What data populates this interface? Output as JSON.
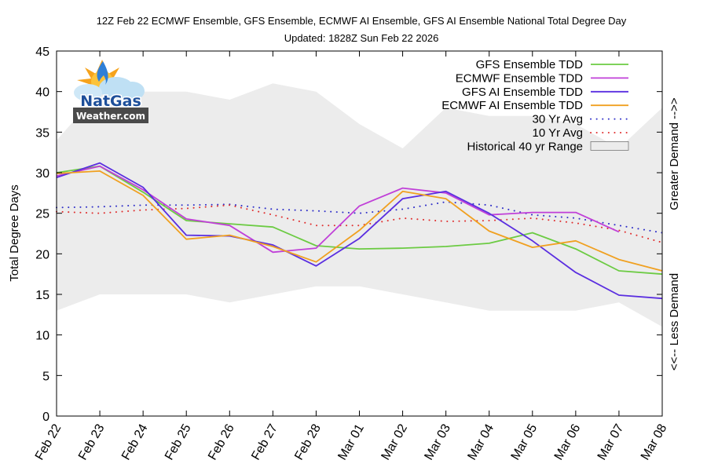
{
  "chart_data": {
    "type": "line",
    "title": "12Z Feb 22 ECMWF Ensemble, GFS Ensemble, ECMWF AI Ensemble, GFS AI Ensemble National Total Degree Day",
    "subtitle": "Updated: 1828Z Sun Feb 22 2026",
    "xlabel": "",
    "ylabel": "Total Degree Days",
    "y2label_top": "Greater Demand -->>",
    "y2label_bottom": "<<-- Less Demand",
    "ylim": [
      0,
      45
    ],
    "yticks": [
      0,
      5,
      10,
      15,
      20,
      25,
      30,
      35,
      40,
      45
    ],
    "ytick_labels": [
      "0",
      "5",
      "10",
      "15",
      "20",
      "25",
      "30",
      "35",
      "40",
      "45"
    ],
    "categories": [
      "Feb 22",
      "Feb 23",
      "Feb 24",
      "Feb 25",
      "Feb 26",
      "Feb 27",
      "Feb 28",
      "Mar 01",
      "Mar 02",
      "Mar 03",
      "Mar 04",
      "Mar 05",
      "Mar 06",
      "Mar 07",
      "Mar 08"
    ],
    "grid": false,
    "legend_position": "top-right",
    "range": {
      "name": "Historical 40 yr Range",
      "color": "#ececec",
      "upper": [
        34,
        40,
        40,
        40,
        39,
        41,
        40,
        36,
        33,
        38,
        37,
        37,
        36,
        33,
        38
      ],
      "lower": [
        13,
        15,
        15,
        15,
        14,
        15,
        16,
        16,
        15,
        14,
        13,
        13,
        13,
        14,
        11
      ]
    },
    "series": [
      {
        "name": "GFS Ensemble TDD",
        "color": "#6ccb43",
        "style": "solid",
        "values": [
          30.0,
          30.8,
          27.6,
          24.1,
          23.7,
          23.3,
          21.0,
          20.6,
          20.7,
          20.9,
          21.3,
          22.6,
          20.6,
          17.9,
          17.5
        ]
      },
      {
        "name": "ECMWF Ensemble TDD",
        "color": "#c040d8",
        "style": "solid",
        "values": [
          29.6,
          30.8,
          27.9,
          24.3,
          23.5,
          20.2,
          20.7,
          25.9,
          28.1,
          27.5,
          24.8,
          25.1,
          25.1,
          22.7,
          null
        ]
      },
      {
        "name": "GFS AI Ensemble TDD",
        "color": "#5a2ee0",
        "style": "solid",
        "values": [
          29.4,
          31.2,
          28.2,
          22.3,
          22.2,
          21.1,
          18.5,
          21.9,
          26.8,
          27.7,
          25.0,
          21.6,
          17.7,
          14.9,
          14.5
        ]
      },
      {
        "name": "ECMWF AI Ensemble TDD",
        "color": "#f0a020",
        "style": "solid",
        "values": [
          29.9,
          30.2,
          27.2,
          21.8,
          22.3,
          20.9,
          19.0,
          22.9,
          27.7,
          26.8,
          22.8,
          20.8,
          21.6,
          19.3,
          17.9
        ]
      },
      {
        "name": "30 Yr Avg",
        "color": "#3030c8",
        "style": "dotted",
        "values": [
          25.7,
          25.8,
          26.0,
          26.0,
          26.1,
          25.5,
          25.3,
          25.0,
          25.5,
          26.4,
          26.0,
          24.8,
          24.4,
          23.5,
          22.6
        ]
      },
      {
        "name": "10 Yr Avg",
        "color": "#e03030",
        "style": "dotted",
        "values": [
          25.2,
          25.0,
          25.4,
          25.6,
          26.0,
          24.8,
          23.5,
          23.5,
          24.4,
          24.0,
          24.1,
          24.4,
          23.8,
          22.9,
          21.4
        ]
      }
    ]
  },
  "logo": {
    "line1": "NatGas",
    "line2": "Weather.com"
  }
}
